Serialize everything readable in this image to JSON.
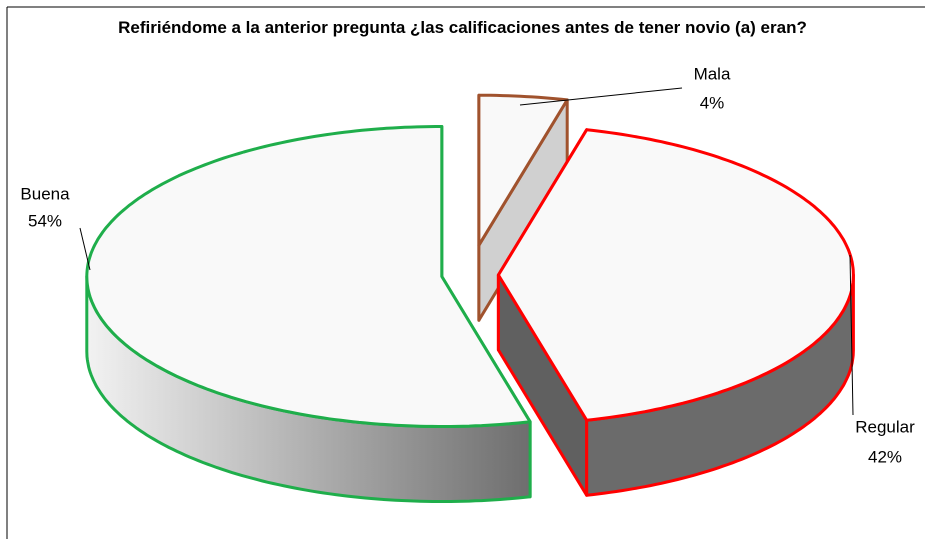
{
  "chart_data": {
    "type": "pie3d",
    "title": "Refiriéndome a la anterior pregunta ¿las calificaciones antes de tener novio (a) eran?",
    "categories": [
      "Mala",
      "Regular",
      "Buena"
    ],
    "values": [
      4,
      42,
      54
    ],
    "value_labels": [
      "4%",
      "42%",
      "54%"
    ],
    "colors": [
      "#a0522d",
      "#ff0000",
      "#1fae4b"
    ]
  }
}
